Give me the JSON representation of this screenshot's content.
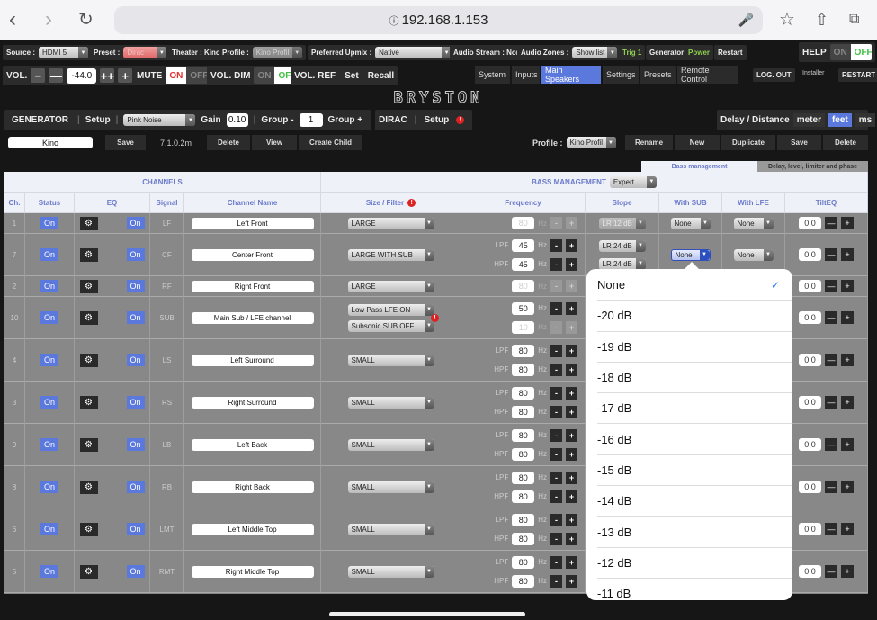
{
  "browser": {
    "url": "192.168.1.153",
    "icons": [
      "back-icon",
      "forward-icon",
      "reload-icon",
      "info-icon",
      "mic-icon",
      "star-icon",
      "share-icon",
      "tabs-icon"
    ]
  },
  "toolbar": {
    "source_label": "Source :",
    "source_value": "HDMI 5",
    "preset_label": "Preset :",
    "preset_value": "Dirac",
    "theater": "Theater : Kino",
    "profile_label": "Profile :",
    "profile_value": "Kino Profil",
    "upmix_label": "Preferred Upmix :",
    "upmix_value": "Native",
    "audio_stream": "Audio Stream : None",
    "zones_label": "Audio Zones :",
    "zones_value": "Show list",
    "trig": "Trig 1",
    "generator": "Generator",
    "power": "Power",
    "restart": "Restart",
    "help": "HELP",
    "help_on": "ON",
    "help_off": "OFF"
  },
  "volume": {
    "label": "VOL.",
    "minus": "−",
    "minus_big": "—",
    "value": "-44.0",
    "plus_big": "++",
    "plus": "+",
    "mute": "MUTE",
    "mute_on": "ON",
    "mute_off": "OFF",
    "dim": "VOL. DIM",
    "dim_on": "ON",
    "dim_off": "OFF",
    "ref": "VOL. REF",
    "set": "Set",
    "recall": "Recall"
  },
  "nav": {
    "tabs": [
      "System",
      "Inputs",
      "Main Speakers",
      "Settings",
      "Presets",
      "Remote Control"
    ],
    "active": "Main Speakers",
    "logout": "LOG. OUT",
    "user": "Installer",
    "restart": "RESTART"
  },
  "logo": "BRYSTON",
  "generator": {
    "label": "GENERATOR",
    "setup": "Setup",
    "signal": "Pink Noise",
    "gain_label": "Gain",
    "gain": "0.10",
    "group_minus": "Group -",
    "group": "1",
    "group_plus": "Group +"
  },
  "dirac": {
    "label": "DIRAC",
    "setup": "Setup"
  },
  "delay": {
    "label": "Delay / Distance",
    "units": [
      "meter",
      "feet",
      "ms"
    ],
    "active": "feet"
  },
  "preset_row": {
    "name": "Kino",
    "save": "Save",
    "layout": "7.1.0.2m",
    "delete": "Delete",
    "view": "View",
    "create_child": "Create Child"
  },
  "profile_row": {
    "label": "Profile :",
    "value": "Kino Profil",
    "rename": "Rename",
    "new": "New",
    "duplicate": "Duplicate",
    "save": "Save",
    "delete": "Delete"
  },
  "sub_tabs": [
    "Bass management",
    "Delay, level, limiter and phase"
  ],
  "table": {
    "group_channels": "CHANNELS",
    "group_bass": "BASS MANAGEMENT",
    "bass_mode": "Expert",
    "columns": [
      "Ch.",
      "Status",
      "EQ",
      "Signal",
      "Channel Name",
      "Size / Filter",
      "Frequency",
      "Slope",
      "With SUB",
      "With LFE",
      "TiltEQ"
    ],
    "rows": [
      {
        "ch": "1",
        "status": "On",
        "eq": "On",
        "signal": "LF",
        "name": "Left Front",
        "size": [
          "LARGE"
        ],
        "freq": [
          {
            "l": "",
            "v": "80",
            "dis": true
          }
        ],
        "slope": [
          {
            "v": "LR 12 dB",
            "dis": true
          }
        ],
        "sub": "None",
        "lfe": "None",
        "tilt": "0.0"
      },
      {
        "ch": "7",
        "status": "On",
        "eq": "On",
        "signal": "CF",
        "name": "Center Front",
        "size": [
          "LARGE WITH SUB"
        ],
        "freq": [
          {
            "l": "LPF",
            "v": "45"
          },
          {
            "l": "HPF",
            "v": "45"
          }
        ],
        "slope": [
          {
            "v": "LR 24 dB"
          },
          {
            "v": "LR 24 dB"
          }
        ],
        "sub": "None",
        "lfe": "None",
        "tilt": "0.0"
      },
      {
        "ch": "2",
        "status": "On",
        "eq": "On",
        "signal": "RF",
        "name": "Right Front",
        "size": [
          "LARGE"
        ],
        "freq": [
          {
            "l": "",
            "v": "80",
            "dis": true
          }
        ],
        "tilt": "0.0"
      },
      {
        "ch": "10",
        "status": "On",
        "eq": "On",
        "signal": "SUB",
        "name": "Main Sub / LFE channel",
        "size": [
          "Low Pass LFE ON",
          "Subsonic SUB OFF"
        ],
        "alert": true,
        "freq": [
          {
            "l": "",
            "v": "50"
          },
          {
            "l": "",
            "v": "10",
            "dis": true
          }
        ],
        "tilt": "0.0"
      },
      {
        "ch": "4",
        "status": "On",
        "eq": "On",
        "signal": "LS",
        "name": "Left Surround",
        "size": [
          "SMALL"
        ],
        "freq": [
          {
            "l": "LPF",
            "v": "80"
          },
          {
            "l": "HPF",
            "v": "80"
          }
        ],
        "tilt": "0.0"
      },
      {
        "ch": "3",
        "status": "On",
        "eq": "On",
        "signal": "RS",
        "name": "Right Surround",
        "size": [
          "SMALL"
        ],
        "freq": [
          {
            "l": "LPF",
            "v": "80"
          },
          {
            "l": "HPF",
            "v": "80"
          }
        ],
        "tilt": "0.0"
      },
      {
        "ch": "9",
        "status": "On",
        "eq": "On",
        "signal": "LB",
        "name": "Left Back",
        "size": [
          "SMALL"
        ],
        "freq": [
          {
            "l": "LPF",
            "v": "80"
          },
          {
            "l": "HPF",
            "v": "80"
          }
        ],
        "tilt": "0.0"
      },
      {
        "ch": "8",
        "status": "On",
        "eq": "On",
        "signal": "RB",
        "name": "Right Back",
        "size": [
          "SMALL"
        ],
        "freq": [
          {
            "l": "LPF",
            "v": "80"
          },
          {
            "l": "HPF",
            "v": "80"
          }
        ],
        "tilt": "0.0"
      },
      {
        "ch": "6",
        "status": "On",
        "eq": "On",
        "signal": "LMT",
        "name": "Left Middle Top",
        "size": [
          "SMALL"
        ],
        "freq": [
          {
            "l": "LPF",
            "v": "80"
          },
          {
            "l": "HPF",
            "v": "80"
          }
        ],
        "tilt": "0.0"
      },
      {
        "ch": "5",
        "status": "On",
        "eq": "On",
        "signal": "RMT",
        "name": "Right Middle Top",
        "size": [
          "SMALL"
        ],
        "freq": [
          {
            "l": "LPF",
            "v": "80"
          },
          {
            "l": "HPF",
            "v": "80"
          }
        ],
        "tilt": "0.0"
      }
    ],
    "hz": "Hz",
    "minus": "-",
    "plus": "+",
    "tilt_minus": "—",
    "tilt_plus": "+"
  },
  "popover": {
    "options": [
      "None",
      "-20 dB",
      "-19 dB",
      "-18 dB",
      "-17 dB",
      "-16 dB",
      "-15 dB",
      "-14 dB",
      "-13 dB",
      "-12 dB",
      "-11 dB"
    ],
    "selected": "None"
  },
  "colors": {
    "accent": "#5b78dd",
    "header_text": "#6a79c9",
    "on_red": "#e33030",
    "on_green": "#3fbf3f",
    "trig_green": "#8fd14f"
  }
}
